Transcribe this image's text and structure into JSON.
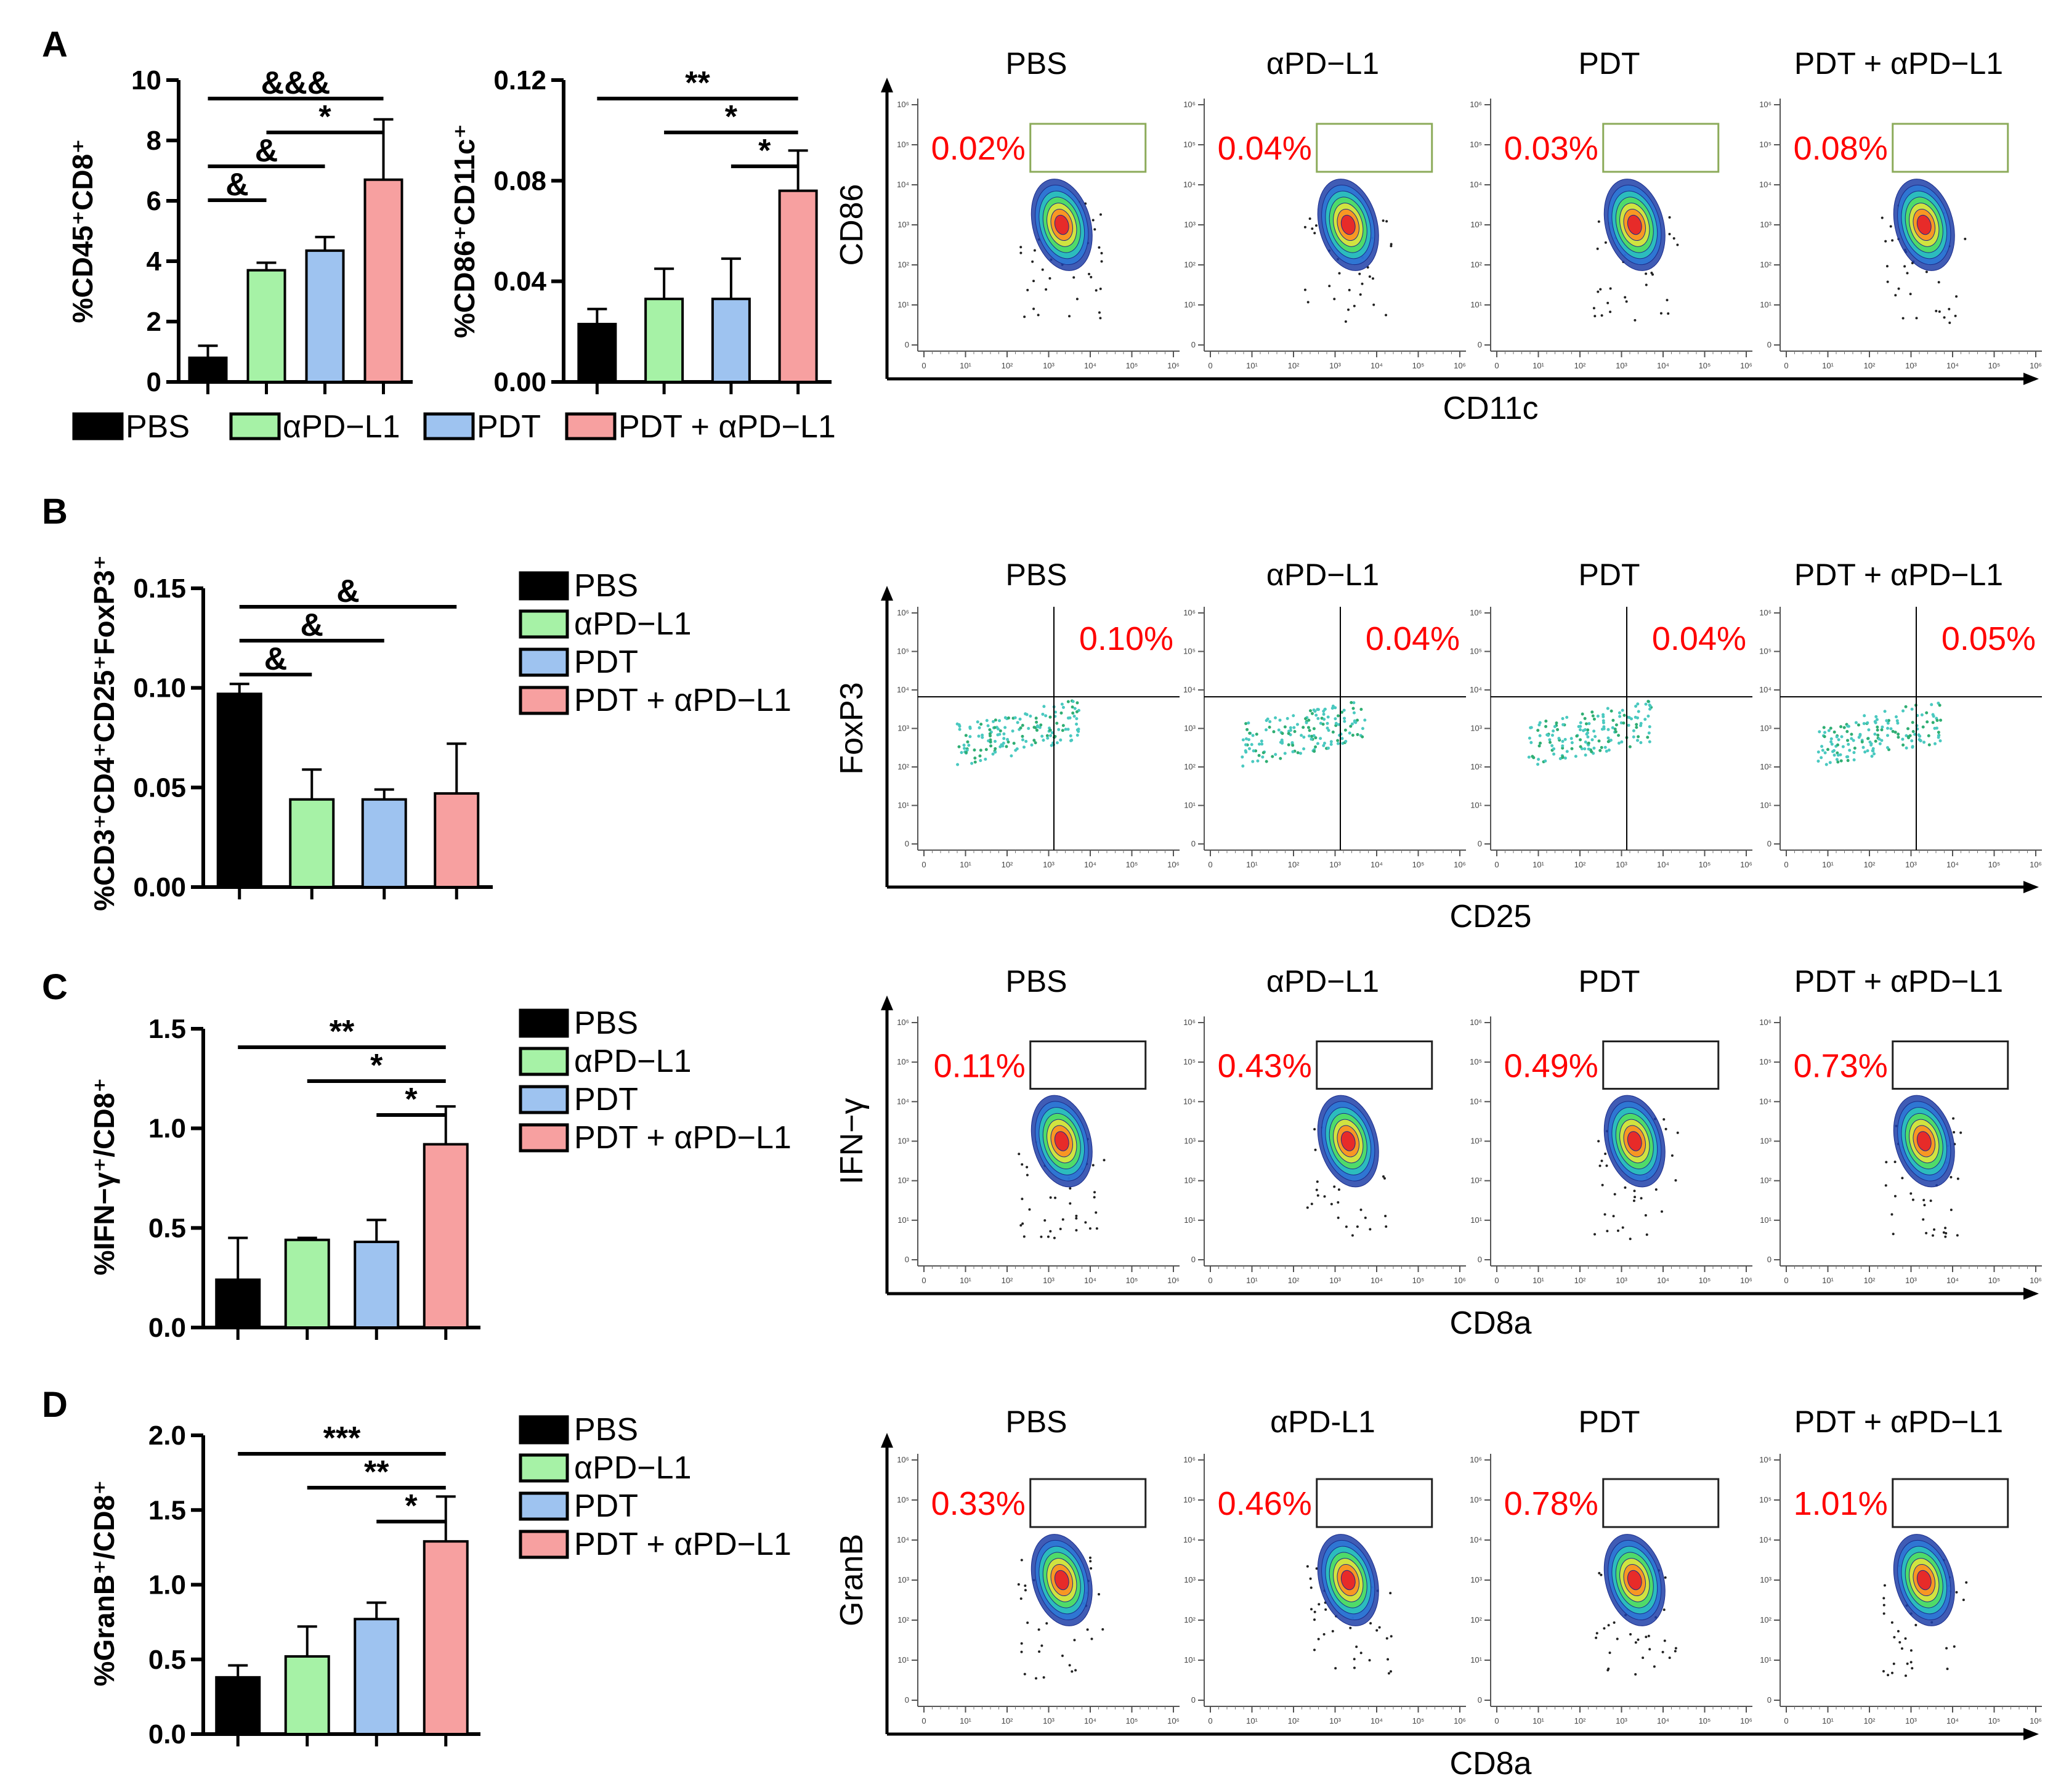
{
  "groups": [
    "PBS",
    "αPD−L1",
    "PDT",
    "PDT + αPD−L1"
  ],
  "colors": {
    "PBS": "#000000",
    "aPDL1": "#a6f2a6",
    "PDT": "#9ec3f0",
    "combo": "#f7a0a0",
    "red": "#ff0000",
    "gate_green": "#8cab5a"
  },
  "panels": {
    "A": "A",
    "B": "B",
    "C": "C",
    "D": "D"
  },
  "legend_A": [
    "PBS",
    "αPD−L1",
    "PDT",
    "PDT + αPD−L1"
  ],
  "legend_B": [
    "PBS",
    "αPD−L1",
    "PDT",
    "PDT + αPD−L1"
  ],
  "legend_C": [
    "PBS",
    "αPD−L1",
    "PDT",
    "PDT + αPD−L1"
  ],
  "legend_D": [
    "PBS",
    "αPD−L1",
    "PDT",
    "PDT + αPD−L1"
  ],
  "chart_data": [
    {
      "id": "A1",
      "type": "bar",
      "ylabel": "%CD45⁺CD8⁺",
      "categories": [
        "PBS",
        "αPD−L1",
        "PDT",
        "PDT + αPD−L1"
      ],
      "values": [
        0.8,
        3.7,
        4.35,
        6.7
      ],
      "errors": [
        0.4,
        0.25,
        0.45,
        2.0
      ],
      "ylim": [
        0,
        10
      ],
      "ticks": [
        "0",
        "2",
        "4",
        "6",
        "8",
        "10"
      ],
      "tick_values": [
        0,
        2,
        4,
        6,
        8,
        10
      ],
      "significance": [
        {
          "from": 0,
          "to": 1,
          "label": "&"
        },
        {
          "from": 0,
          "to": 2,
          "label": "&"
        },
        {
          "from": 0,
          "to": 3,
          "label": "&&&"
        },
        {
          "from": 1,
          "to": 3,
          "label": "*"
        }
      ]
    },
    {
      "id": "A2",
      "type": "bar",
      "ylabel": "%CD86⁺CD11c⁺",
      "categories": [
        "PBS",
        "αPD−L1",
        "PDT",
        "PDT + αPD−L1"
      ],
      "values": [
        0.023,
        0.033,
        0.033,
        0.076
      ],
      "errors": [
        0.006,
        0.012,
        0.016,
        0.016
      ],
      "ylim": [
        0,
        0.12
      ],
      "ticks": [
        "0.00",
        "0.04",
        "0.08",
        "0.12"
      ],
      "tick_values": [
        0,
        0.04,
        0.08,
        0.12
      ],
      "significance": [
        {
          "from": 0,
          "to": 3,
          "label": "**"
        },
        {
          "from": 1,
          "to": 3,
          "label": "*"
        },
        {
          "from": 2,
          "to": 3,
          "label": "*"
        }
      ]
    },
    {
      "id": "B",
      "type": "bar",
      "ylabel": "%CD3⁺CD4⁺CD25⁺FoxP3⁺",
      "categories": [
        "PBS",
        "αPD−L1",
        "PDT",
        "PDT + αPD−L1"
      ],
      "values": [
        0.097,
        0.044,
        0.044,
        0.047
      ],
      "errors": [
        0.005,
        0.015,
        0.005,
        0.025
      ],
      "ylim": [
        0,
        0.15
      ],
      "ticks": [
        "0.00",
        "0.05",
        "0.10",
        "0.15"
      ],
      "tick_values": [
        0,
        0.05,
        0.1,
        0.15
      ],
      "significance": [
        {
          "from": 0,
          "to": 1,
          "label": "&"
        },
        {
          "from": 0,
          "to": 2,
          "label": "&"
        },
        {
          "from": 0,
          "to": 3,
          "label": "&"
        }
      ]
    },
    {
      "id": "C",
      "type": "bar",
      "ylabel": "%IFN−γ⁺/CD8⁺",
      "categories": [
        "PBS",
        "αPD−L1",
        "PDT",
        "PDT + αPD−L1"
      ],
      "values": [
        0.24,
        0.44,
        0.43,
        0.92
      ],
      "errors": [
        0.21,
        0.01,
        0.11,
        0.19
      ],
      "ylim": [
        0,
        1.5
      ],
      "ticks": [
        "0.0",
        "0.5",
        "1.0",
        "1.5"
      ],
      "tick_values": [
        0,
        0.5,
        1.0,
        1.5
      ],
      "significance": [
        {
          "from": 0,
          "to": 3,
          "label": "**"
        },
        {
          "from": 1,
          "to": 3,
          "label": "*"
        },
        {
          "from": 2,
          "to": 3,
          "label": "*"
        }
      ]
    },
    {
      "id": "D",
      "type": "bar",
      "ylabel": "%GranB⁺/CD8⁺",
      "categories": [
        "PBS",
        "αPD−L1",
        "PDT",
        "PDT + αPD−L1"
      ],
      "values": [
        0.38,
        0.52,
        0.77,
        1.29
      ],
      "errors": [
        0.08,
        0.2,
        0.11,
        0.3
      ],
      "ylim": [
        0,
        2.0
      ],
      "ticks": [
        "0.0",
        "0.5",
        "1.0",
        "1.5",
        "2.0"
      ],
      "tick_values": [
        0,
        0.5,
        1.0,
        1.5,
        2.0
      ],
      "significance": [
        {
          "from": 0,
          "to": 3,
          "label": "***"
        },
        {
          "from": 1,
          "to": 3,
          "label": "**"
        },
        {
          "from": 2,
          "to": 3,
          "label": "*"
        }
      ]
    }
  ],
  "flow": {
    "A": {
      "titles": [
        "PBS",
        "αPD−L1",
        "PDT",
        "PDT + αPD−L1"
      ],
      "percents": [
        "0.02%",
        "0.04%",
        "0.03%",
        "0.08%"
      ],
      "xlabel": "CD11c",
      "ylabel": "CD86"
    },
    "B": {
      "titles": [
        "PBS",
        "αPD−L1",
        "PDT",
        "PDT + αPD−L1"
      ],
      "percents": [
        "0.10%",
        "0.04%",
        "0.04%",
        "0.05%"
      ],
      "xlabel": "CD25",
      "ylabel": "FoxP3"
    },
    "C": {
      "titles": [
        "PBS",
        "αPD−L1",
        "PDT",
        "PDT + αPD−L1"
      ],
      "percents": [
        "0.11%",
        "0.43%",
        "0.49%",
        "0.73%"
      ],
      "xlabel": "CD8a",
      "ylabel": "IFN−γ"
    },
    "D": {
      "titles": [
        "PBS",
        "αPD-L1",
        "PDT",
        "PDT + αPD−L1"
      ],
      "percents": [
        "0.33%",
        "0.46%",
        "0.78%",
        "1.01%"
      ],
      "xlabel": "CD8a",
      "ylabel": "GranB"
    }
  },
  "flow_tick_labels": {
    "x": [
      "0",
      "10¹",
      "10²",
      "10³",
      "10⁴",
      "10⁵",
      "10⁶"
    ],
    "y": [
      "0",
      "10¹",
      "10²",
      "10³",
      "10⁴",
      "10⁵",
      "10⁶"
    ]
  }
}
